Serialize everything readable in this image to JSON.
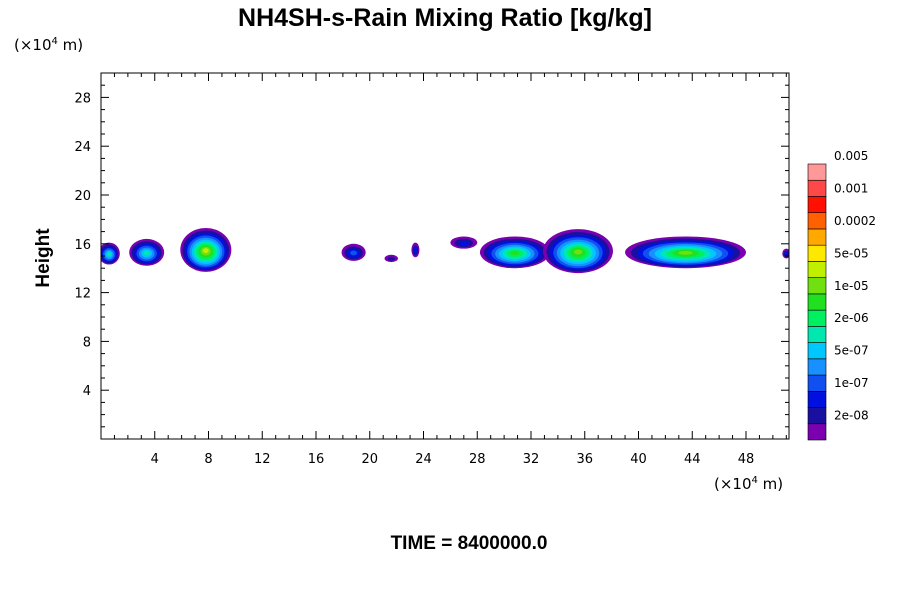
{
  "chart_data": {
    "type": "heatmap",
    "title": "NH4SH-s-Rain Mixing Ratio [kg/kg]",
    "ylabel": "Height",
    "xlabel": "",
    "x_unit_label": "(×10",
    "x_unit_exp": "4",
    "x_unit_tail": " m)",
    "y_unit_label": "(×10",
    "y_unit_exp": "4",
    "y_unit_tail": " m)",
    "xlim": [
      0,
      51.2
    ],
    "ylim": [
      0,
      30
    ],
    "x_ticks": [
      4,
      8,
      12,
      16,
      20,
      24,
      28,
      32,
      36,
      40,
      44,
      48
    ],
    "y_ticks": [
      4,
      8,
      12,
      16,
      20,
      24,
      28
    ],
    "time_label": "TIME = 8400000.0",
    "colorbar": {
      "colors": [
        "#7a00b0",
        "#1a10a0",
        "#0010e0",
        "#1050f0",
        "#1890ff",
        "#00c8ff",
        "#00e8b0",
        "#00f060",
        "#20e020",
        "#70e010",
        "#c0f000",
        "#ffe800",
        "#ffa800",
        "#ff6000",
        "#ff1000",
        "#ff4848",
        "#ff9898"
      ],
      "labels": [
        "2e-08",
        "1e-07",
        "5e-07",
        "2e-06",
        "1e-05",
        "5e-05",
        "0.0002",
        "0.001",
        "0.005"
      ]
    },
    "blobs": [
      {
        "cx": 0.6,
        "cy": 15.2,
        "rx": 0.8,
        "ry": 0.9,
        "level": 6
      },
      {
        "cx": 3.4,
        "cy": 15.3,
        "rx": 1.3,
        "ry": 1.1,
        "level": 6
      },
      {
        "cx": 7.8,
        "cy": 15.5,
        "rx": 1.9,
        "ry": 1.8,
        "level": 10
      },
      {
        "cx": 18.8,
        "cy": 15.3,
        "rx": 0.9,
        "ry": 0.7,
        "level": 3
      },
      {
        "cx": 21.6,
        "cy": 14.8,
        "rx": 0.5,
        "ry": 0.3,
        "level": 1
      },
      {
        "cx": 23.4,
        "cy": 15.5,
        "rx": 0.3,
        "ry": 0.6,
        "level": 2
      },
      {
        "cx": 27.0,
        "cy": 16.1,
        "rx": 1.0,
        "ry": 0.5,
        "level": 2
      },
      {
        "cx": 30.8,
        "cy": 15.3,
        "rx": 2.6,
        "ry": 1.3,
        "level": 8
      },
      {
        "cx": 35.5,
        "cy": 15.4,
        "rx": 2.6,
        "ry": 1.8,
        "level": 9
      },
      {
        "cx": 43.5,
        "cy": 15.3,
        "rx": 4.5,
        "ry": 1.3,
        "level": 9
      },
      {
        "cx": 51.0,
        "cy": 15.2,
        "rx": 0.3,
        "ry": 0.4,
        "level": 2
      }
    ]
  }
}
